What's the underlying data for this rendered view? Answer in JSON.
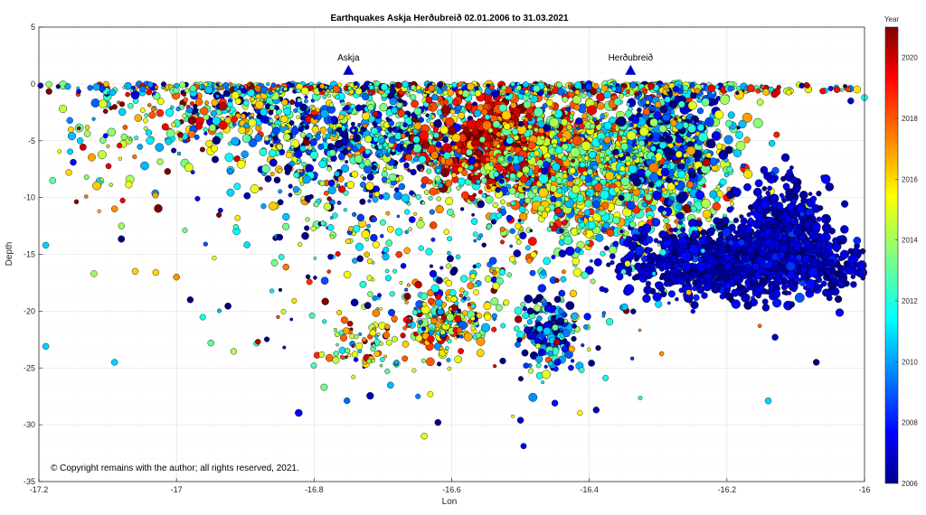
{
  "chart_data": {
    "type": "scatter",
    "title": "Earthquakes Askja Herðubreið  02.01.2006 to 31.03.2021",
    "xlabel": "Lon",
    "ylabel": "Depth",
    "xlim": [
      -17.2,
      -16
    ],
    "ylim": [
      -35,
      5
    ],
    "x_ticks": [
      -17.2,
      -17,
      -16.8,
      -16.6,
      -16.4,
      -16.2,
      -16
    ],
    "x_tick_labels": [
      "-17.2",
      "-17",
      "-16.8",
      "-16.6",
      "-16.4",
      "-16.2",
      "-16"
    ],
    "y_ticks": [
      5,
      0,
      -5,
      -10,
      -15,
      -20,
      -25,
      -30,
      -35
    ],
    "y_tick_labels": [
      "5",
      "0",
      "-5",
      "-10",
      "-15",
      "-20",
      "-25",
      "-30",
      "-35"
    ],
    "grid": true,
    "colorbar": {
      "title": "Year",
      "range": [
        2006,
        2021
      ],
      "ticks": [
        2006,
        2008,
        2010,
        2012,
        2014,
        2016,
        2018,
        2020
      ],
      "tick_labels": [
        "2006",
        "2008",
        "2010",
        "2012",
        "2014",
        "2016",
        "2018",
        "2020"
      ],
      "colormap": "jet"
    },
    "annotations": [
      {
        "label": "Askja",
        "x": -16.75,
        "y": 1.2,
        "marker": "triangle",
        "color": "#0000cc"
      },
      {
        "label": "Herðubreið",
        "x": -16.34,
        "y": 1.2,
        "marker": "triangle",
        "color": "#0000cc"
      }
    ],
    "clusters": [
      {
        "x": -16.67,
        "y": -4.5,
        "sx": 0.08,
        "sy": 2.2,
        "n": 520,
        "year_mean": 2011,
        "year_sd": 4,
        "size": 4
      },
      {
        "x": -16.52,
        "y": -5.2,
        "sx": 0.06,
        "sy": 2.2,
        "n": 620,
        "year_mean": 2019,
        "year_sd": 1.3,
        "size": 4.5
      },
      {
        "x": -16.38,
        "y": -7.5,
        "sx": 0.09,
        "sy": 3.5,
        "n": 1300,
        "year_mean": 2014,
        "year_sd": 2.6,
        "size": 4.5
      },
      {
        "x": -16.28,
        "y": -5,
        "sx": 0.04,
        "sy": 3,
        "n": 450,
        "year_mean": 2010,
        "year_sd": 4,
        "size": 4.5
      },
      {
        "x": -16.17,
        "y": -15.5,
        "sx": 0.09,
        "sy": 1.6,
        "n": 1250,
        "year_mean": 2007.2,
        "year_sd": 0.7,
        "size": 4.5
      },
      {
        "x": -16.12,
        "y": -12,
        "sx": 0.03,
        "sy": 2.2,
        "n": 250,
        "year_mean": 2007.2,
        "year_sd": 0.7,
        "size": 4.5
      },
      {
        "x": -16.61,
        "y": -21,
        "sx": 0.03,
        "sy": 1.6,
        "n": 200,
        "year_mean": 2015,
        "year_sd": 3.5,
        "size": 4
      },
      {
        "x": -16.46,
        "y": -22,
        "sx": 0.025,
        "sy": 2,
        "n": 170,
        "year_mean": 2009,
        "year_sd": 3,
        "size": 4
      },
      {
        "x": -16.73,
        "y": -23.5,
        "sx": 0.03,
        "sy": 1.2,
        "n": 70,
        "year_mean": 2015,
        "year_sd": 4,
        "size": 3.5
      },
      {
        "x": -16.88,
        "y": -2.5,
        "sx": 0.07,
        "sy": 1.8,
        "n": 300,
        "year_mean": 2012,
        "year_sd": 4.5,
        "size": 4
      },
      {
        "x": -17.05,
        "y": -4,
        "sx": 0.07,
        "sy": 3,
        "n": 130,
        "year_mean": 2015,
        "year_sd": 4.5,
        "size": 4
      },
      {
        "x": -16.6,
        "y": -14,
        "sx": 0.18,
        "sy": 6,
        "n": 420,
        "year_mean": 2012,
        "year_sd": 4.5,
        "size": 3.5
      },
      {
        "x": -16.55,
        "y": -0.4,
        "sx": 0.28,
        "sy": 0.25,
        "n": 500,
        "year_mean": 2013,
        "year_sd": 4.5,
        "size": 3.5
      },
      {
        "x": -16.78,
        "y": -7,
        "sx": 0.07,
        "sy": 3,
        "n": 180,
        "year_mean": 2011,
        "year_sd": 4,
        "size": 4
      }
    ],
    "sparse_points": [
      {
        "x": -17.19,
        "y": -14.2,
        "year": 2011
      },
      {
        "x": -17.19,
        "y": -23.1,
        "year": 2011
      },
      {
        "x": -17.18,
        "y": -8.5,
        "year": 2013
      },
      {
        "x": -17.09,
        "y": -24.5,
        "year": 2011
      },
      {
        "x": -16.95,
        "y": -22.8,
        "year": 2013
      },
      {
        "x": -17.0,
        "y": -17,
        "year": 2017
      },
      {
        "x": -16.98,
        "y": -19,
        "year": 2006
      },
      {
        "x": -16.85,
        "y": -13.5,
        "year": 2006
      },
      {
        "x": -16.62,
        "y": -29.8,
        "year": 2006
      },
      {
        "x": -16.64,
        "y": -31,
        "year": 2015
      },
      {
        "x": -16.45,
        "y": -28.1,
        "year": 2008
      },
      {
        "x": -16.39,
        "y": -28.7,
        "year": 2007
      },
      {
        "x": -16.5,
        "y": -29.6,
        "year": 2007
      },
      {
        "x": -16.14,
        "y": -27.9,
        "year": 2011
      },
      {
        "x": -16.07,
        "y": -24.5,
        "year": 2006
      },
      {
        "x": -16.04,
        "y": -16.7,
        "year": 2006
      },
      {
        "x": -16.04,
        "y": -0.5,
        "year": 2019
      },
      {
        "x": -16.13,
        "y": -22.3,
        "year": 2007
      },
      {
        "x": -17.06,
        "y": -16.5,
        "year": 2016
      },
      {
        "x": -17.03,
        "y": -16.6,
        "year": 2016
      },
      {
        "x": -17.12,
        "y": -16.7,
        "year": 2014
      },
      {
        "x": -17.14,
        "y": -5.0,
        "year": 2011
      },
      {
        "x": -17.15,
        "y": -6.9,
        "year": 2008
      },
      {
        "x": -17.08,
        "y": -12.5,
        "year": 2014
      },
      {
        "x": -17.09,
        "y": -11,
        "year": 2017
      },
      {
        "x": -16.02,
        "y": -1.5,
        "year": 2007
      },
      {
        "x": -16.0,
        "y": -1.2,
        "year": 2012
      }
    ]
  },
  "copyright": "© Copyright remains with the author; all rights reserved, 2021."
}
